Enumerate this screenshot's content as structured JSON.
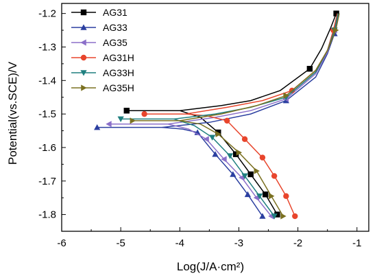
{
  "chart_data": {
    "type": "line",
    "title": "",
    "xlabel": "Log(J/A·cm²)",
    "ylabel": "Potential(vs.SCE)/V",
    "xlim": [
      -6,
      -0.8
    ],
    "ylim": [
      -1.85,
      -1.17
    ],
    "xticks": [
      -6,
      -5,
      -4,
      -3,
      -2,
      -1
    ],
    "xtick_labels": [
      "-6",
      "-5",
      "-4",
      "-3",
      "-2",
      "-1"
    ],
    "yticks": [
      -1.2,
      -1.3,
      -1.4,
      -1.5,
      -1.6,
      -1.7,
      -1.8
    ],
    "ytick_labels": [
      "-1.2",
      "-1.3",
      "-1.4",
      "-1.5",
      "-1.6",
      "-1.7",
      "-1.8"
    ],
    "grid": false,
    "legend_position": "top-left",
    "series": [
      {
        "name": "AG31",
        "color": "#000000",
        "marker": "square",
        "x": [
          -4.9,
          -4.0,
          -3.3,
          -2.8,
          -2.3,
          -1.8,
          -1.6,
          -1.45,
          -1.35,
          -1.3
        ],
        "y": [
          -1.49,
          -1.49,
          -1.475,
          -1.46,
          -1.43,
          -1.365,
          -1.305,
          -1.245,
          -1.2,
          -1.2
        ],
        "cathodic_x": [
          -4.0,
          -3.65,
          -3.35,
          -3.05,
          -2.8,
          -2.55,
          -2.35
        ],
        "cathodic_y": [
          -1.49,
          -1.51,
          -1.555,
          -1.62,
          -1.68,
          -1.74,
          -1.8
        ]
      },
      {
        "name": "AG33",
        "color": "#2b3fa0",
        "marker": "triangle-up",
        "x": [
          -5.4,
          -4.3,
          -3.5,
          -2.8,
          -2.2,
          -1.7,
          -1.5,
          -1.38,
          -1.32
        ],
        "y": [
          -1.54,
          -1.54,
          -1.525,
          -1.5,
          -1.46,
          -1.39,
          -1.32,
          -1.26,
          -1.205
        ],
        "cathodic_x": [
          -4.3,
          -3.95,
          -3.7,
          -3.4,
          -3.1,
          -2.85,
          -2.6
        ],
        "cathodic_y": [
          -1.54,
          -1.545,
          -1.555,
          -1.62,
          -1.68,
          -1.74,
          -1.805
        ]
      },
      {
        "name": "AG35",
        "color": "#8b6fc9",
        "marker": "triangle-left",
        "x": [
          -5.2,
          -4.2,
          -3.4,
          -2.8,
          -2.2,
          -1.7,
          -1.5,
          -1.38,
          -1.33
        ],
        "y": [
          -1.53,
          -1.53,
          -1.51,
          -1.49,
          -1.455,
          -1.38,
          -1.315,
          -1.25,
          -1.205
        ],
        "cathodic_x": [
          -4.2,
          -3.85,
          -3.55,
          -3.25,
          -2.95,
          -2.7,
          -2.45
        ],
        "cathodic_y": [
          -1.53,
          -1.545,
          -1.575,
          -1.635,
          -1.69,
          -1.75,
          -1.805
        ]
      },
      {
        "name": "AG31H",
        "color": "#e8452c",
        "marker": "circle",
        "x": [
          -4.6,
          -3.9,
          -3.2,
          -2.6,
          -2.1,
          -1.7,
          -1.5,
          -1.4,
          -1.33
        ],
        "y": [
          -1.5,
          -1.5,
          -1.48,
          -1.46,
          -1.43,
          -1.37,
          -1.31,
          -1.25,
          -1.2
        ],
        "cathodic_x": [
          -3.9,
          -3.55,
          -3.2,
          -2.9,
          -2.6,
          -2.4,
          -2.2,
          -2.05
        ],
        "cathodic_y": [
          -1.5,
          -1.505,
          -1.52,
          -1.575,
          -1.63,
          -1.685,
          -1.745,
          -1.805
        ]
      },
      {
        "name": "AG33H",
        "color": "#1f7f7f",
        "marker": "triangle-down",
        "x": [
          -5.0,
          -4.1,
          -3.4,
          -2.8,
          -2.2,
          -1.7,
          -1.5,
          -1.38,
          -1.32
        ],
        "y": [
          -1.515,
          -1.515,
          -1.5,
          -1.48,
          -1.45,
          -1.375,
          -1.31,
          -1.25,
          -1.2
        ],
        "cathodic_x": [
          -4.1,
          -3.75,
          -3.45,
          -3.15,
          -2.9,
          -2.65,
          -2.4
        ],
        "cathodic_y": [
          -1.515,
          -1.535,
          -1.57,
          -1.625,
          -1.685,
          -1.745,
          -1.805
        ]
      },
      {
        "name": "AG35H",
        "color": "#7a7020",
        "marker": "triangle-right",
        "x": [
          -4.8,
          -4.0,
          -3.3,
          -2.7,
          -2.2,
          -1.7,
          -1.5,
          -1.36,
          -1.3
        ],
        "y": [
          -1.52,
          -1.52,
          -1.5,
          -1.475,
          -1.445,
          -1.37,
          -1.31,
          -1.25,
          -1.2
        ],
        "cathodic_x": [
          -4.0,
          -3.65,
          -3.35,
          -3.0,
          -2.7,
          -2.45,
          -2.25
        ],
        "cathodic_y": [
          -1.52,
          -1.53,
          -1.56,
          -1.615,
          -1.67,
          -1.745,
          -1.805
        ]
      }
    ]
  }
}
